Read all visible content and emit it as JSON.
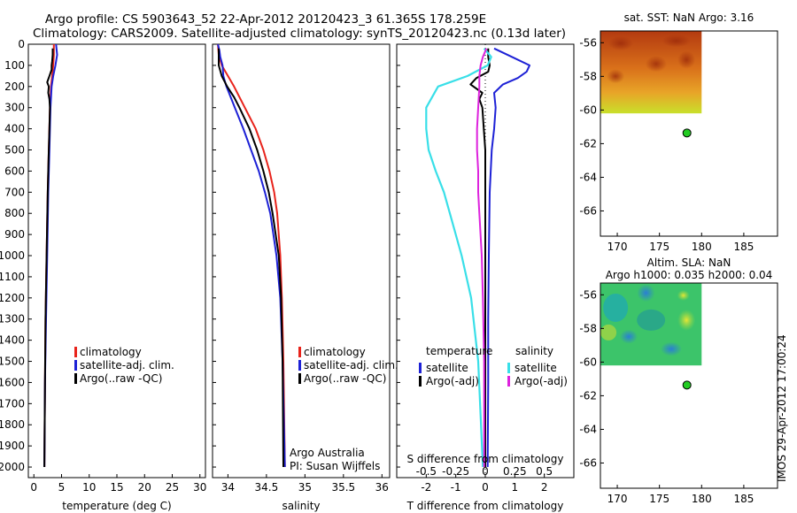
{
  "title_line1": "Argo profile: CS 5903643_52 22-Apr-2012 20120423_3 61.365S 178.259E",
  "title_line2": "Climatology: CARS2009. Satellite-adjusted climatology: synTS_20120423.nc (0.13d later)",
  "stamp": "IMOS 29-Apr-2012 17:00:24",
  "colors": {
    "climatology": "#e8231b",
    "satellite_clim": "#1d21d6",
    "argo": "#000000",
    "t_sat_diff": "#39dfe8",
    "t_argo_diff": "#000000",
    "s_sat_diff": "#39dfe8",
    "s_argo_diff": "#dd22dd",
    "marker": "#22cc22"
  },
  "chart_data": [
    {
      "id": "temperature",
      "type": "line",
      "xlabel": "temperature (deg C)",
      "ylim": [
        2050,
        0
      ],
      "xlim": [
        -1,
        31
      ],
      "yticks": [
        0,
        100,
        200,
        300,
        400,
        500,
        600,
        700,
        800,
        900,
        1000,
        1100,
        1200,
        1300,
        1400,
        1500,
        1600,
        1700,
        1800,
        1900,
        2000
      ],
      "xticks": [
        0,
        5,
        10,
        15,
        20,
        25,
        30
      ],
      "legend": [
        "climatology",
        "satellite-adj. clim.",
        "Argo(..raw -QC)"
      ],
      "series": [
        {
          "name": "climatology",
          "depth": [
            0,
            50,
            100,
            150,
            200,
            300,
            500,
            700,
            1000,
            1300,
            1600,
            2000
          ],
          "values": [
            3.6,
            3.6,
            3.5,
            3.3,
            3.1,
            2.9,
            2.7,
            2.5,
            2.3,
            2.1,
            2.0,
            1.9
          ]
        },
        {
          "name": "satellite-adj. clim.",
          "depth": [
            0,
            50,
            100,
            150,
            200,
            300,
            500,
            700,
            1000,
            1300,
            1600,
            2000
          ],
          "values": [
            4.0,
            4.2,
            3.9,
            3.5,
            3.2,
            3.0,
            2.8,
            2.6,
            2.4,
            2.2,
            2.0,
            1.9
          ]
        },
        {
          "name": "Argo(..raw -QC)",
          "depth": [
            20,
            50,
            80,
            100,
            120,
            150,
            180,
            200,
            230,
            260,
            300,
            400,
            500,
            700,
            1000,
            1300,
            1600,
            2000
          ],
          "values": [
            3.4,
            3.4,
            3.3,
            3.2,
            3.2,
            2.8,
            2.4,
            2.7,
            2.6,
            2.8,
            2.9,
            2.8,
            2.7,
            2.5,
            2.3,
            2.1,
            2.0,
            1.9
          ]
        }
      ]
    },
    {
      "id": "salinity",
      "type": "line",
      "xlabel": "salinity",
      "ylim": [
        2050,
        0
      ],
      "xlim": [
        33.8,
        36.1
      ],
      "xticks": [
        34,
        34.5,
        35,
        35.5,
        36
      ],
      "legend": [
        "climatology",
        "satellite-adj. clim.",
        "Argo(..raw -QC)"
      ],
      "annotation": [
        "Argo Australia",
        "PI: Susan Wijffels"
      ],
      "series": [
        {
          "name": "climatology",
          "depth": [
            0,
            50,
            100,
            150,
            200,
            300,
            400,
            500,
            600,
            700,
            800,
            1000,
            1200,
            1500,
            2000
          ],
          "values": [
            33.87,
            33.88,
            33.92,
            34.0,
            34.08,
            34.22,
            34.36,
            34.46,
            34.54,
            34.6,
            34.64,
            34.68,
            34.7,
            34.72,
            34.74
          ]
        },
        {
          "name": "satellite-adj. clim.",
          "depth": [
            0,
            30,
            60,
            100,
            150,
            200,
            300,
            400,
            500,
            600,
            700,
            800,
            1000,
            1200,
            1500,
            2000
          ],
          "values": [
            33.87,
            33.89,
            33.9,
            33.93,
            33.94,
            33.98,
            34.09,
            34.2,
            34.3,
            34.4,
            34.48,
            34.55,
            34.63,
            34.68,
            34.71,
            34.74
          ]
        },
        {
          "name": "Argo(..raw -QC)",
          "depth": [
            20,
            60,
            100,
            150,
            200,
            250,
            300,
            400,
            500,
            600,
            700,
            800,
            900,
            1000,
            1200,
            1500,
            2000
          ],
          "values": [
            33.88,
            33.88,
            33.88,
            33.92,
            33.99,
            34.08,
            34.15,
            34.28,
            34.38,
            34.46,
            34.53,
            34.58,
            34.62,
            34.66,
            34.69,
            34.71,
            34.72
          ]
        }
      ]
    },
    {
      "id": "difference",
      "type": "line",
      "xlabel": "T difference from climatology",
      "xlabel_top": "S difference from climatology",
      "ylim": [
        2050,
        0
      ],
      "xlim": [
        -3,
        3
      ],
      "xticks_T": [
        -2,
        -1,
        0,
        1,
        2
      ],
      "xticks_S_labels": [
        "-0.5",
        "-0.25",
        "0",
        "0.25",
        "0.5"
      ],
      "xticks_S_values": [
        -0.5,
        -0.25,
        0,
        0.25,
        0.5
      ],
      "legend_left_title": "temperature",
      "legend_right_title": "salinity",
      "legend": [
        "satellite",
        "Argo(-adj)",
        "satellite",
        "Argo(-adj)"
      ],
      "series": [
        {
          "name": "T satellite",
          "depth": [
            20,
            60,
            100,
            130,
            160,
            190,
            230,
            300,
            400,
            500,
            700,
            1000,
            1300,
            1600,
            2000
          ],
          "values": [
            0.3,
            0.9,
            1.5,
            1.4,
            1.1,
            0.6,
            0.3,
            0.35,
            0.3,
            0.22,
            0.15,
            0.12,
            0.1,
            0.1,
            0.08
          ]
        },
        {
          "name": "T Argo(-adj)",
          "depth": [
            20,
            60,
            100,
            130,
            160,
            190,
            230,
            260,
            300,
            400,
            500,
            700,
            1000,
            1300,
            1600,
            2000
          ],
          "values": [
            0.1,
            0.1,
            0.15,
            0.1,
            -0.3,
            -0.5,
            -0.1,
            -0.2,
            -0.1,
            -0.05,
            0.0,
            0.0,
            0.0,
            0.0,
            0.0,
            0.0
          ]
        },
        {
          "name": "S satellite",
          "depth": [
            20,
            60,
            100,
            150,
            200,
            300,
            400,
            500,
            600,
            700,
            800,
            1000,
            1200,
            1500,
            2000
          ],
          "values": [
            -0.01,
            0.05,
            0.02,
            -0.15,
            -0.4,
            -0.5,
            -0.5,
            -0.48,
            -0.42,
            -0.35,
            -0.3,
            -0.2,
            -0.12,
            -0.06,
            -0.02
          ]
        },
        {
          "name": "S Argo(-adj)",
          "depth": [
            20,
            60,
            100,
            150,
            200,
            300,
            400,
            500,
            600,
            700,
            800,
            1000,
            1200,
            1500,
            2000
          ],
          "values": [
            0.01,
            -0.02,
            -0.04,
            -0.05,
            -0.05,
            -0.06,
            -0.07,
            -0.07,
            -0.06,
            -0.06,
            -0.05,
            -0.03,
            -0.02,
            -0.01,
            -0.01
          ]
        }
      ]
    },
    {
      "id": "sst_map",
      "type": "heatmap",
      "title": "sat. SST: NaN Argo: 3.16",
      "xlim": [
        168,
        189
      ],
      "ylim": [
        -67.5,
        -55.3
      ],
      "xticks": [
        170,
        175,
        180,
        185
      ],
      "yticks": [
        -56,
        -58,
        -60,
        -62,
        -64,
        -66
      ],
      "marker": {
        "lon": 178.259,
        "lat": -61.365
      },
      "field_extent": {
        "lon": [
          168,
          180
        ],
        "lat": [
          -60.2,
          -55.3
        ]
      }
    },
    {
      "id": "sla_map",
      "type": "heatmap",
      "title_line1": "Altim. SLA: NaN",
      "title_line2": "Argo h1000: 0.035 h2000: 0.04",
      "xlim": [
        168,
        189
      ],
      "ylim": [
        -67.5,
        -55.3
      ],
      "xticks": [
        170,
        175,
        180,
        185
      ],
      "yticks": [
        -56,
        -58,
        -60,
        -62,
        -64,
        -66
      ],
      "marker": {
        "lon": 178.259,
        "lat": -61.365
      },
      "field_extent": {
        "lon": [
          168,
          180
        ],
        "lat": [
          -60.2,
          -55.3
        ]
      }
    }
  ]
}
